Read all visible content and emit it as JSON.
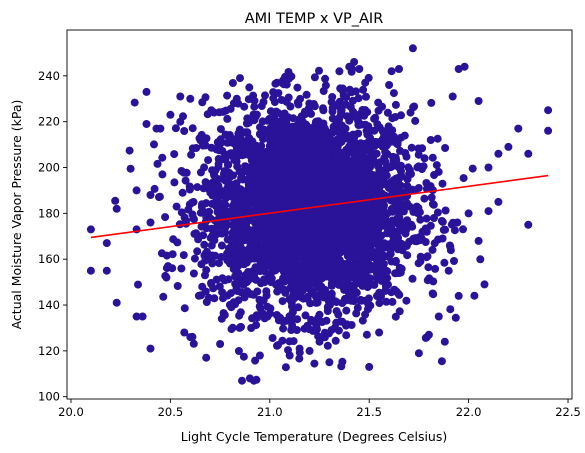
{
  "chart_data": {
    "type": "scatter",
    "title": "AMI TEMP x VP_AIR",
    "xlabel": "Light Cycle Temperature (Degrees Celsius)",
    "ylabel": "Actual Moisture Vapor Pressure (kPa)",
    "xlim": [
      19.98,
      22.52
    ],
    "ylim": [
      99,
      260
    ],
    "xticks": [
      "20.0",
      "20.5",
      "21.0",
      "21.5",
      "22.0",
      "22.5"
    ],
    "yticks": [
      "100",
      "120",
      "140",
      "160",
      "180",
      "200",
      "220",
      "240"
    ],
    "grid": false,
    "legend": "none",
    "colors": {
      "points": "#2a1299",
      "fit_line": "#ff0000"
    },
    "cloud": {
      "center_x": 21.2,
      "center_y": 182,
      "sd_x": 0.26,
      "sd_y": 22
    },
    "trend_line": {
      "x": [
        20.1,
        22.4
      ],
      "y": [
        169.5,
        196.5
      ]
    },
    "series": [
      {
        "type": "scatter",
        "points": [
          [
            20.1,
            173
          ],
          [
            20.1,
            155
          ],
          [
            20.18,
            167
          ],
          [
            20.18,
            155
          ],
          [
            20.23,
            182
          ],
          [
            20.23,
            141
          ],
          [
            20.3,
            199.5
          ],
          [
            20.33,
            190
          ],
          [
            20.33,
            173
          ],
          [
            20.33,
            135
          ],
          [
            20.36,
            135
          ],
          [
            20.38,
            233
          ],
          [
            20.38,
            219
          ],
          [
            20.4,
            188
          ],
          [
            20.4,
            176
          ],
          [
            20.4,
            121
          ],
          [
            20.43,
            217
          ],
          [
            20.45,
            217
          ],
          [
            20.46,
            197
          ],
          [
            20.48,
            152
          ],
          [
            20.5,
            223
          ],
          [
            20.55,
            231
          ],
          [
            20.55,
            220
          ],
          [
            20.6,
            230
          ],
          [
            20.57,
            128
          ],
          [
            20.6,
            126
          ],
          [
            20.66,
            148
          ],
          [
            20.68,
            117
          ],
          [
            20.72,
            224
          ],
          [
            20.75,
            123
          ],
          [
            20.85,
            239
          ],
          [
            20.86,
            107
          ],
          [
            20.9,
            108
          ],
          [
            20.92,
            107
          ],
          [
            20.95,
            118
          ],
          [
            21.1,
            118
          ],
          [
            21.15,
            121
          ],
          [
            21.2,
            120
          ],
          [
            21.25,
            124
          ],
          [
            21.3,
            115
          ],
          [
            21.35,
            242
          ],
          [
            21.4,
            244
          ],
          [
            21.45,
            243
          ],
          [
            21.48,
            237
          ],
          [
            21.5,
            113
          ],
          [
            21.55,
            128
          ],
          [
            21.6,
            236
          ],
          [
            21.65,
            243
          ],
          [
            21.72,
            252
          ],
          [
            21.75,
            119
          ],
          [
            21.8,
            127
          ],
          [
            21.85,
            135
          ],
          [
            21.88,
            124
          ],
          [
            21.92,
            231
          ],
          [
            21.95,
            243
          ],
          [
            21.95,
            144
          ],
          [
            21.98,
            244
          ],
          [
            22.05,
            229
          ],
          [
            22.08,
            149
          ],
          [
            22.1,
            200
          ],
          [
            22.1,
            181
          ],
          [
            22.15,
            206
          ],
          [
            22.2,
            209
          ],
          [
            22.25,
            217
          ],
          [
            22.3,
            206
          ],
          [
            22.3,
            175
          ],
          [
            22.4,
            225
          ],
          [
            22.4,
            216
          ],
          [
            22.05,
            168
          ],
          [
            22.0,
            180
          ],
          [
            22.15,
            185
          ],
          [
            21.9,
            155
          ]
        ]
      }
    ]
  }
}
